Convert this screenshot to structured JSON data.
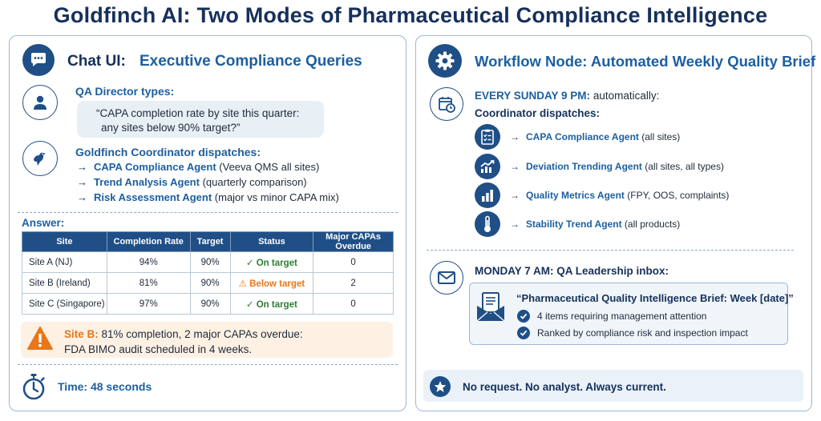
{
  "title": "Goldfinch AI: Two Modes of Pharmaceutical Compliance Intelligence",
  "chat": {
    "header_a": "Chat UI:",
    "header_b": "Executive Compliance Queries",
    "icon": "chat-bubble-icon",
    "director_label": "QA Director types:",
    "query_line1": "“CAPA completion rate by site this quarter:",
    "query_line2": "any sites below 90% target?”",
    "coordinator_label": "Goldfinch Coordinator dispatches:",
    "agents": [
      {
        "arrow": "→",
        "name": "CAPA Compliance Agent",
        "detail": "(Veeva QMS all sites)"
      },
      {
        "arrow": "→",
        "name": "Trend Analysis Agent",
        "detail": "(quarterly comparison)"
      },
      {
        "arrow": "→",
        "name": "Risk Assessment Agent",
        "detail": "(major vs minor CAPA mix)"
      }
    ],
    "answer_label": "Answer:",
    "table": {
      "headers": [
        "Site",
        "Completion Rate",
        "Target",
        "Status",
        "Major CAPAs Overdue"
      ],
      "rows": [
        {
          "site": "Site A (NJ)",
          "rate": "94%",
          "target": "90%",
          "status_icon": "✓",
          "status": "On target",
          "overdue": "0",
          "ok": true
        },
        {
          "site": "Site B (Ireland)",
          "rate": "81%",
          "target": "90%",
          "status_icon": "⚠",
          "status": "Below target",
          "overdue": "2",
          "ok": false
        },
        {
          "site": "Site C (Singapore)",
          "rate": "97%",
          "target": "90%",
          "status_icon": "✓",
          "status": "On target",
          "overdue": "0",
          "ok": true
        }
      ]
    },
    "alert_bold": "Site B:",
    "alert_line1_rest": " 81% completion, 2 major CAPAs overdue:",
    "alert_line2": "FDA BIMO audit scheduled in 4 weeks.",
    "time_label": "Time: 48 seconds"
  },
  "workflow": {
    "header": "Workflow Node: Automated Weekly Quality Brief",
    "icon": "gear-icon",
    "schedule_bold": "EVERY SUNDAY 9 PM:",
    "schedule_rest": " automatically:",
    "coordinator_label": "Coordinator dispatches:",
    "agents": [
      {
        "icon": "checklist-icon",
        "arrow": "→",
        "name": "CAPA Compliance Agent",
        "detail": "(all sites)"
      },
      {
        "icon": "trend-chart-icon",
        "arrow": "→",
        "name": "Deviation Trending Agent",
        "detail": "(all sites, all types)"
      },
      {
        "icon": "bar-chart-icon",
        "arrow": "→",
        "name": "Quality Metrics Agent",
        "detail": "(FPY, OOS, complaints)"
      },
      {
        "icon": "thermometer-icon",
        "arrow": "→",
        "name": "Stability Trend Agent",
        "detail": "(all products)"
      }
    ],
    "inbox_label": "MONDAY 7 AM: QA Leadership inbox:",
    "brief_title": "“Pharmaceutical Quality Intelligence Brief: Week [date]”",
    "brief_items": [
      "4 items requiring management attention",
      "Ranked by compliance risk and inspection impact"
    ],
    "footer": "No request. No analyst. Always current."
  },
  "colors": {
    "navy": "#16305a",
    "blue": "#1d5fa0",
    "accent_fill": "#1f4f86",
    "ok_green": "#2e7d32",
    "warn_orange": "#e8771a"
  }
}
